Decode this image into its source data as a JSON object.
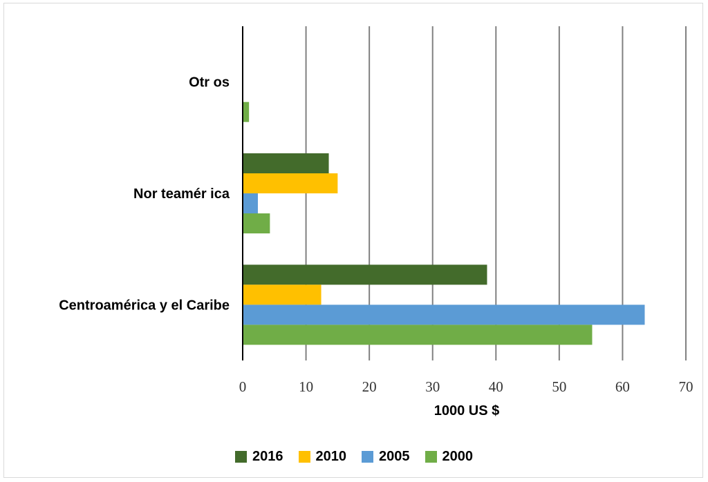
{
  "chart_data": {
    "type": "bar",
    "orientation": "horizontal",
    "categories": [
      "Centroamérica y el Caribe",
      "Nor teamér ica",
      "Otr os"
    ],
    "series": [
      {
        "name": "2016",
        "color": "#436b2b",
        "values": [
          38.6,
          13.6,
          0
        ]
      },
      {
        "name": "2010",
        "color": "#ffc000",
        "values": [
          12.4,
          15.0,
          0
        ]
      },
      {
        "name": "2005",
        "color": "#5b9bd5",
        "values": [
          63.5,
          2.4,
          0
        ]
      },
      {
        "name": "2000",
        "color": "#70ad47",
        "values": [
          55.2,
          4.3,
          1.0
        ]
      }
    ],
    "xlabel": "1000 US $",
    "xlim": [
      0,
      70
    ],
    "xticks": [
      0,
      10,
      20,
      30,
      40,
      50,
      60,
      70
    ],
    "grid": "vertical",
    "legend_position": "bottom"
  }
}
